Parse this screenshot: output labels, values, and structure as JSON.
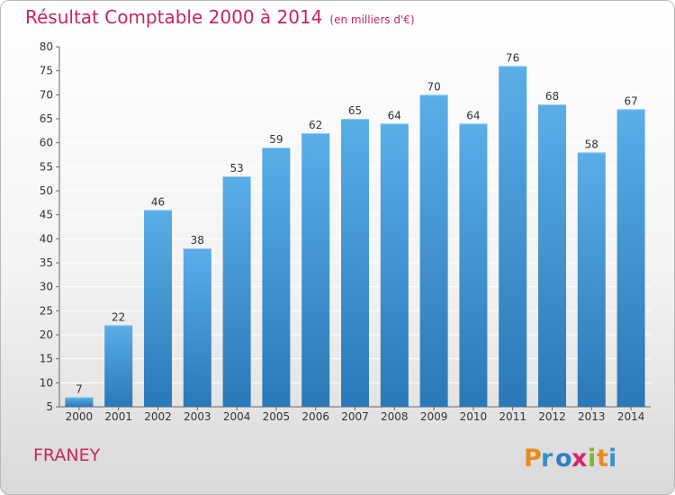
{
  "header": {
    "title": "Résultat Comptable 2000 à 2014",
    "subtitle": "(en milliers d'€)"
  },
  "footer": {
    "commune": "FRANEY",
    "logo_text": "Proxiti"
  },
  "colors": {
    "bar_top": "#5aaee8",
    "bar_bottom": "#2a78b8",
    "title": "#c8265a",
    "grid": "#ffffff"
  },
  "chart_data": {
    "type": "bar",
    "title": "Résultat Comptable 2000 à 2014",
    "subtitle": "(en milliers d'€)",
    "xlabel": "",
    "ylabel": "",
    "categories": [
      "2000",
      "2001",
      "2002",
      "2003",
      "2004",
      "2005",
      "2006",
      "2007",
      "2008",
      "2009",
      "2010",
      "2011",
      "2012",
      "2013",
      "2014"
    ],
    "values": [
      7,
      22,
      46,
      38,
      53,
      59,
      62,
      65,
      64,
      70,
      64,
      76,
      68,
      58,
      67
    ],
    "ylim": [
      5,
      80
    ],
    "yticks": [
      5,
      10,
      15,
      20,
      25,
      30,
      35,
      40,
      45,
      50,
      55,
      60,
      65,
      70,
      75,
      80
    ],
    "grid": true,
    "legend": "none"
  }
}
